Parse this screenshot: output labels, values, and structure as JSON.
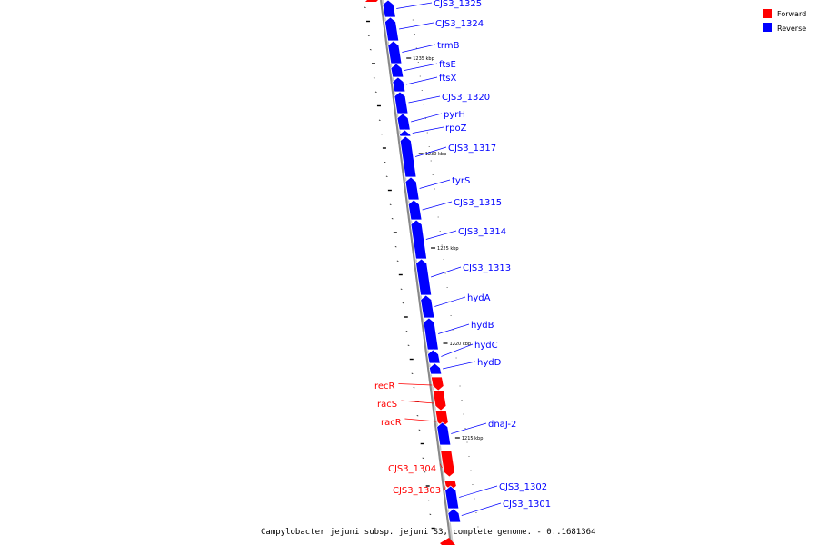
{
  "legend": [
    {
      "label": "Forward",
      "color": "#ff0000"
    },
    {
      "label": "Reverse",
      "color": "#0000ff"
    }
  ],
  "caption": "Campylobacter jejuni subsp. jejuni S3, complete genome. - 0..1681364",
  "colors": {
    "forward": "#ff0000",
    "reverse": "#0000ff",
    "backbone": "#888888",
    "tick": "#000000"
  },
  "genes": [
    {
      "name": "CJS3_1325",
      "strand": "reverse"
    },
    {
      "name": "CJS3_1324",
      "strand": "reverse"
    },
    {
      "name": "trmB",
      "strand": "reverse"
    },
    {
      "name": "ftsE",
      "strand": "reverse"
    },
    {
      "name": "ftsX",
      "strand": "reverse"
    },
    {
      "name": "CJS3_1320",
      "strand": "reverse"
    },
    {
      "name": "pyrH",
      "strand": "reverse"
    },
    {
      "name": "rpoZ",
      "strand": "reverse"
    },
    {
      "name": "CJS3_1317",
      "strand": "reverse"
    },
    {
      "name": "tyrS",
      "strand": "reverse"
    },
    {
      "name": "CJS3_1315",
      "strand": "reverse"
    },
    {
      "name": "CJS3_1314",
      "strand": "reverse"
    },
    {
      "name": "CJS3_1313",
      "strand": "reverse"
    },
    {
      "name": "hydA",
      "strand": "reverse"
    },
    {
      "name": "hydB",
      "strand": "reverse"
    },
    {
      "name": "hydC",
      "strand": "reverse"
    },
    {
      "name": "hydD",
      "strand": "reverse"
    },
    {
      "name": "recR",
      "strand": "forward"
    },
    {
      "name": "racS",
      "strand": "forward"
    },
    {
      "name": "racR",
      "strand": "forward"
    },
    {
      "name": "dnaJ-2",
      "strand": "reverse"
    },
    {
      "name": "CJS3_1304",
      "strand": "forward"
    },
    {
      "name": "CJS3_1303",
      "strand": "forward"
    },
    {
      "name": "CJS3_1302",
      "strand": "reverse"
    },
    {
      "name": "CJS3_1301",
      "strand": "reverse"
    }
  ],
  "scale_labels": [
    "1235 kbp",
    "1230 kbp",
    "1225 kbp",
    "1220 kbp",
    "1215 kbp"
  ]
}
